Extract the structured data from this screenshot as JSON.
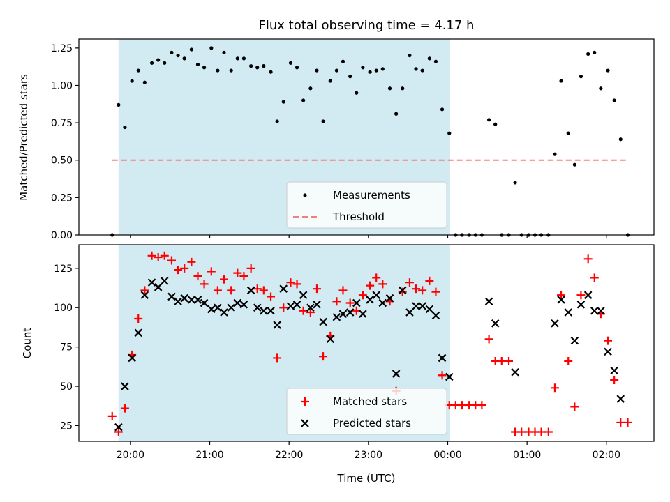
{
  "chart_data": {
    "title": "Flux total observing time = 4.17 h",
    "xlabel": "Time (UTC)",
    "x_ticks": [
      "20:00",
      "21:00",
      "22:00",
      "23:00",
      "00:00",
      "01:00",
      "02:00"
    ],
    "x_range_hours": [
      19.35,
      26.6
    ],
    "shaded_interval_hours": [
      19.85,
      24.03
    ],
    "colors": {
      "shade": "#add8e6",
      "measurements": "#000000",
      "threshold": "#f08080",
      "matched": "#ff0000",
      "predicted": "#000000"
    },
    "panels": [
      {
        "type": "scatter",
        "ylabel": "Matched/Predicted stars",
        "ylim": [
          0,
          1.31
        ],
        "y_ticks": [
          "0.00",
          "0.25",
          "0.50",
          "0.75",
          "1.00",
          "1.25"
        ],
        "y_tick_values": [
          0,
          0.25,
          0.5,
          0.75,
          1.0,
          1.25
        ],
        "threshold": {
          "name": "Threshold",
          "y": 0.5,
          "x_range": [
            19.77,
            26.27
          ]
        },
        "legend_position": "lower-right-center",
        "series": [
          {
            "name": "Measurements",
            "marker": "dot",
            "x": [
              19.77,
              19.85,
              19.93,
              20.02,
              20.1,
              20.18,
              20.27,
              20.35,
              20.43,
              20.52,
              20.6,
              20.68,
              20.77,
              20.85,
              20.93,
              21.02,
              21.1,
              21.18,
              21.27,
              21.35,
              21.43,
              21.52,
              21.6,
              21.68,
              21.77,
              21.85,
              21.93,
              22.02,
              22.1,
              22.18,
              22.27,
              22.35,
              22.43,
              22.52,
              22.6,
              22.68,
              22.77,
              22.85,
              22.93,
              23.02,
              23.1,
              23.18,
              23.27,
              23.35,
              23.43,
              23.52,
              23.6,
              23.68,
              23.77,
              23.85,
              23.93,
              24.02,
              24.1,
              24.18,
              24.27,
              24.35,
              24.43,
              24.52,
              24.6,
              24.68,
              24.77,
              24.85,
              24.93,
              25.02,
              25.1,
              25.18,
              25.27,
              25.35,
              25.43,
              25.52,
              25.6,
              25.68,
              25.77,
              25.85,
              25.93,
              26.02,
              26.1,
              26.18,
              26.27
            ],
            "y": [
              0.0,
              0.87,
              0.72,
              1.03,
              1.1,
              1.02,
              1.15,
              1.17,
              1.15,
              1.22,
              1.2,
              1.18,
              1.24,
              1.14,
              1.12,
              1.25,
              1.1,
              1.22,
              1.1,
              1.18,
              1.18,
              1.13,
              1.12,
              1.13,
              1.09,
              0.76,
              0.89,
              1.15,
              1.12,
              0.9,
              0.98,
              1.1,
              0.76,
              1.03,
              1.1,
              1.16,
              1.06,
              0.95,
              1.12,
              1.09,
              1.1,
              1.11,
              0.98,
              0.81,
              0.98,
              1.2,
              1.11,
              1.1,
              1.18,
              1.16,
              0.84,
              0.68,
              0.0,
              0.0,
              0.0,
              0.0,
              0.0,
              0.77,
              0.74,
              0.0,
              0.0,
              0.35,
              0.0,
              0.0,
              0.0,
              0.0,
              0.0,
              0.54,
              1.03,
              0.68,
              0.47,
              1.06,
              1.21,
              1.22,
              0.98,
              1.1,
              0.9,
              0.64,
              0.0
            ]
          }
        ]
      },
      {
        "type": "scatter",
        "ylabel": "Count",
        "ylim": [
          15,
          140
        ],
        "y_ticks": [
          "25",
          "50",
          "75",
          "100",
          "125"
        ],
        "y_tick_values": [
          25,
          50,
          75,
          100,
          125
        ],
        "legend_position": "lower-right-center",
        "series": [
          {
            "name": "Matched stars",
            "marker": "plus",
            "x": [
              19.77,
              19.85,
              19.93,
              20.02,
              20.1,
              20.18,
              20.27,
              20.35,
              20.43,
              20.52,
              20.6,
              20.68,
              20.77,
              20.85,
              20.93,
              21.02,
              21.1,
              21.18,
              21.27,
              21.35,
              21.43,
              21.52,
              21.6,
              21.68,
              21.77,
              21.85,
              21.93,
              22.02,
              22.1,
              22.18,
              22.27,
              22.35,
              22.43,
              22.52,
              22.6,
              22.68,
              22.77,
              22.85,
              22.93,
              23.02,
              23.1,
              23.18,
              23.27,
              23.35,
              23.43,
              23.52,
              23.6,
              23.68,
              23.77,
              23.85,
              23.93,
              24.02,
              24.1,
              24.18,
              24.27,
              24.35,
              24.43,
              24.52,
              24.6,
              24.68,
              24.77,
              24.85,
              24.93,
              25.02,
              25.1,
              25.18,
              25.27,
              25.35,
              25.43,
              25.52,
              25.6,
              25.68,
              25.77,
              25.85,
              25.93,
              26.02,
              26.1,
              26.18,
              26.27
            ],
            "y": [
              31,
              21,
              36,
              70,
              93,
              111,
              133,
              132,
              133,
              130,
              124,
              125,
              129,
              120,
              115,
              123,
              111,
              118,
              111,
              122,
              120,
              125,
              112,
              111,
              107,
              68,
              100,
              116,
              115,
              98,
              97,
              112,
              69,
              82,
              104,
              111,
              103,
              98,
              108,
              114,
              119,
              115,
              104,
              47,
              110,
              116,
              112,
              111,
              117,
              110,
              57,
              38,
              38,
              38,
              38,
              38,
              38,
              80,
              66,
              66,
              66,
              21,
              21,
              21,
              21,
              21,
              21,
              49,
              108,
              66,
              37,
              108,
              131,
              119,
              96,
              79,
              54,
              27,
              27
            ]
          },
          {
            "name": "Predicted stars",
            "marker": "x",
            "x": [
              19.85,
              19.93,
              20.02,
              20.1,
              20.18,
              20.27,
              20.35,
              20.43,
              20.52,
              20.6,
              20.68,
              20.77,
              20.85,
              20.93,
              21.02,
              21.1,
              21.18,
              21.27,
              21.35,
              21.43,
              21.52,
              21.6,
              21.68,
              21.77,
              21.85,
              21.93,
              22.02,
              22.1,
              22.18,
              22.27,
              22.35,
              22.43,
              22.52,
              22.6,
              22.68,
              22.77,
              22.85,
              22.93,
              23.02,
              23.1,
              23.18,
              23.27,
              23.35,
              23.43,
              23.52,
              23.6,
              23.68,
              23.77,
              23.85,
              23.93,
              24.02,
              24.52,
              24.6,
              24.85,
              25.35,
              25.43,
              25.52,
              25.6,
              25.68,
              25.77,
              25.85,
              25.93,
              26.02,
              26.1,
              26.18
            ],
            "y": [
              24,
              50,
              68,
              84,
              108,
              116,
              113,
              117,
              107,
              104,
              106,
              105,
              105,
              103,
              99,
              100,
              97,
              100,
              103,
              102,
              111,
              100,
              98,
              98,
              89,
              112,
              101,
              102,
              108,
              100,
              102,
              91,
              80,
              94,
              96,
              97,
              103,
              96,
              105,
              108,
              103,
              106,
              58,
              111,
              97,
              101,
              101,
              99,
              95,
              68,
              56,
              104,
              90,
              59,
              90,
              105,
              97,
              79,
              102,
              108,
              98,
              98,
              72,
              60,
              42
            ]
          }
        ]
      }
    ]
  }
}
